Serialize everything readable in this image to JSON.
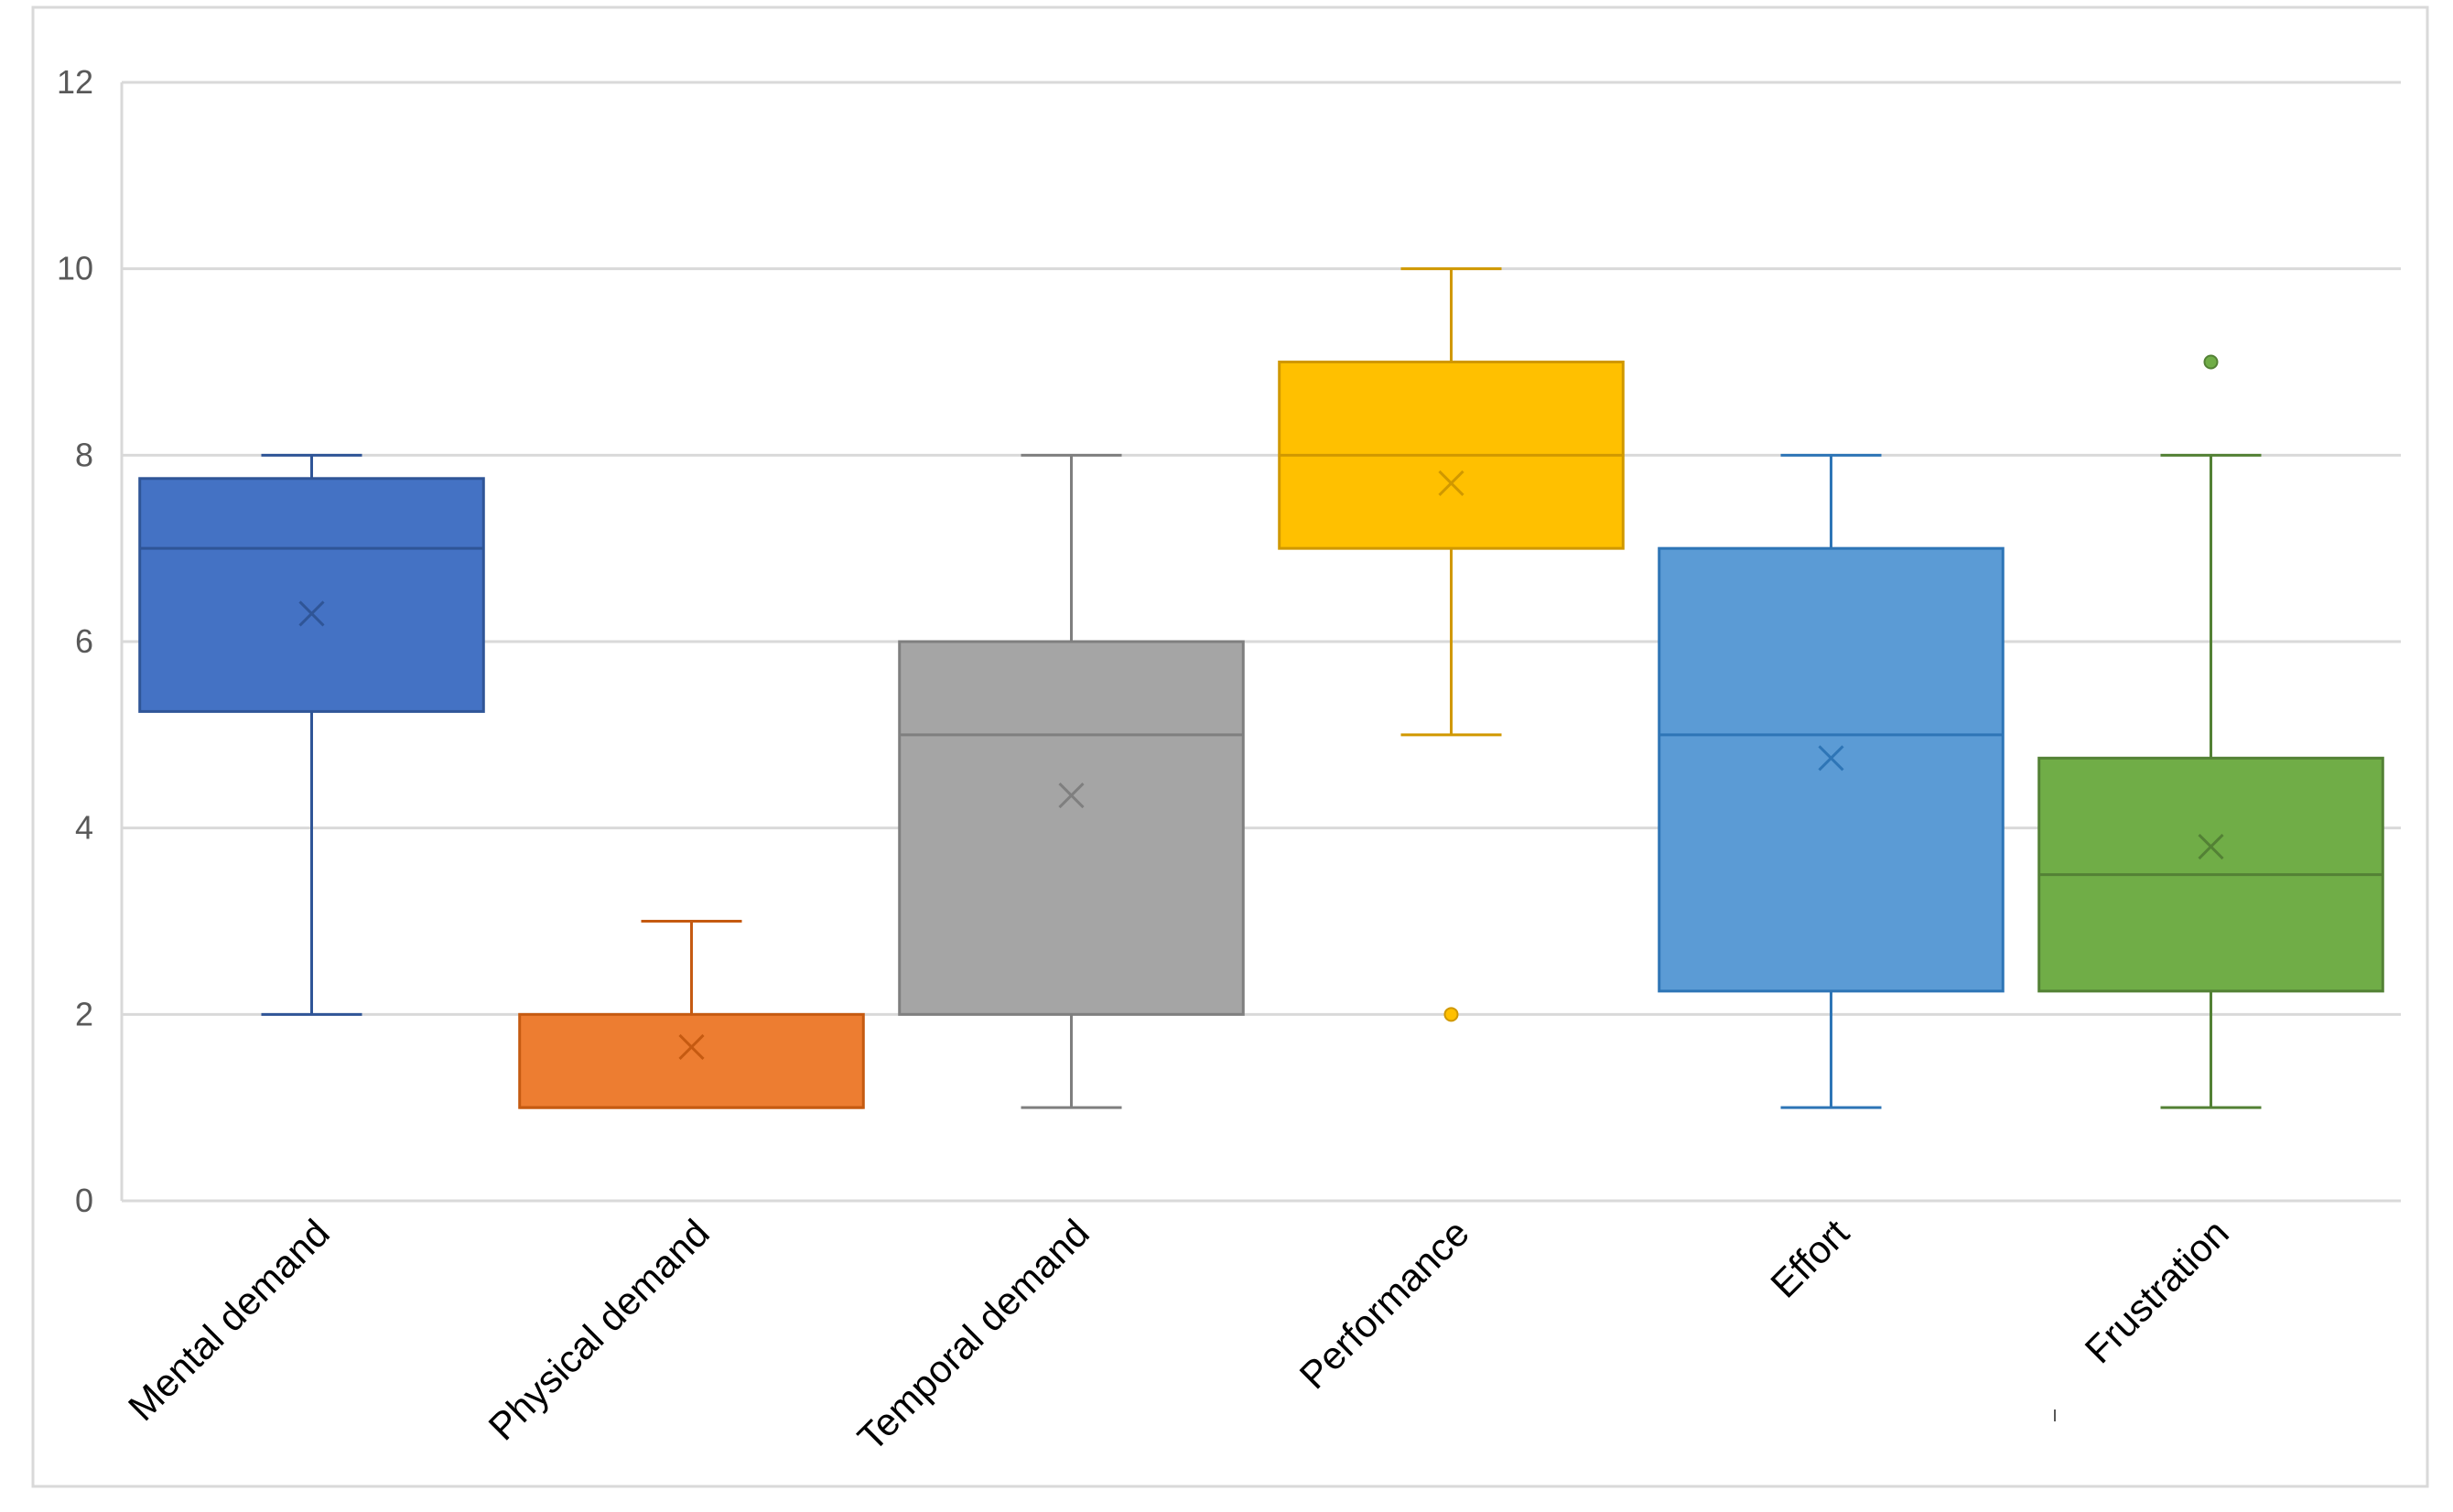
{
  "chart_data": {
    "type": "box",
    "title": "",
    "xlabel": "",
    "ylabel": "",
    "ylim": [
      0,
      12
    ],
    "yticks": [
      0,
      2,
      4,
      6,
      8,
      10,
      12
    ],
    "grid": true,
    "legend": "none",
    "categories": [
      "Mental demand",
      "Physical demand",
      "Temporal demand",
      "Performance",
      "Effort",
      "Frustration"
    ],
    "series": [
      {
        "name": "Mental demand",
        "color": "#4472C4",
        "edge": "#2F5597",
        "whisker_low": 2,
        "q1": 5.25,
        "median": 7,
        "q3": 7.75,
        "whisker_high": 8,
        "mean": 6.3,
        "outliers": []
      },
      {
        "name": "Physical demand",
        "color": "#ED7D31",
        "edge": "#C55A11",
        "whisker_low": 1,
        "q1": 1,
        "median": 1,
        "q3": 2,
        "whisker_high": 3,
        "mean": 1.65,
        "outliers": []
      },
      {
        "name": "Temporal demand",
        "color": "#A5A5A5",
        "edge": "#7F7F7F",
        "whisker_low": 1,
        "q1": 2,
        "median": 5,
        "q3": 6,
        "whisker_high": 8,
        "mean": 4.35,
        "outliers": []
      },
      {
        "name": "Performance",
        "color": "#FFC000",
        "edge": "#D09800",
        "whisker_low": 5,
        "q1": 7,
        "median": 8,
        "q3": 9,
        "whisker_high": 10,
        "mean": 7.7,
        "outliers": [
          2
        ]
      },
      {
        "name": "Effort",
        "color": "#5B9BD5",
        "edge": "#2E75B6",
        "whisker_low": 1,
        "q1": 2.25,
        "median": 5,
        "q3": 7,
        "whisker_high": 8,
        "mean": 4.75,
        "outliers": []
      },
      {
        "name": "Frustration",
        "color": "#70AD47",
        "edge": "#538135",
        "whisker_low": 1,
        "q1": 2.25,
        "median": 3.5,
        "q3": 4.75,
        "whisker_high": 8,
        "mean": 3.8,
        "outliers": [
          9
        ]
      }
    ]
  },
  "colors": {
    "grid": "#D9D9D9",
    "frame": "#D9D9D9",
    "tick_text": "#595959",
    "category_text": "#000000"
  }
}
